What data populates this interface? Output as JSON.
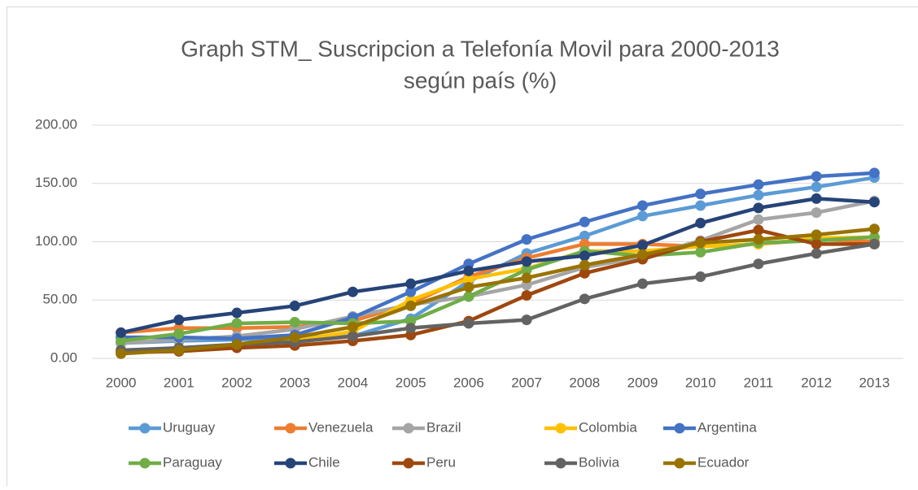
{
  "chart_data": {
    "type": "line",
    "title": [
      "Graph STM_ Suscripcion a Telefonía Movil para 2000-2013",
      "según país (%)"
    ],
    "categories": [
      "2000",
      "2001",
      "2002",
      "2003",
      "2004",
      "2005",
      "2006",
      "2007",
      "2008",
      "2009",
      "2010",
      "2011",
      "2012",
      "2013"
    ],
    "ylim": [
      0,
      200
    ],
    "yticks": [
      {
        "value": 0,
        "label": "0.00"
      },
      {
        "value": 50,
        "label": "50.00"
      },
      {
        "value": 100,
        "label": "100.00"
      },
      {
        "value": 150,
        "label": "150.00"
      },
      {
        "value": 200,
        "label": "200.00"
      }
    ],
    "grid": true,
    "legend": "bottom",
    "series": [
      {
        "name": "Uruguay",
        "color": "#5b9bd5",
        "values": [
          13,
          15,
          16,
          18,
          19,
          34,
          66,
          90,
          105,
          122,
          131,
          140,
          147,
          155
        ]
      },
      {
        "name": "Venezuela",
        "color": "#ed7d31",
        "values": [
          22,
          26,
          26,
          27,
          32,
          47,
          70,
          86,
          98,
          98,
          96,
          98,
          102,
          100
        ]
      },
      {
        "name": "Brazil",
        "color": "#a5a5a5",
        "values": [
          13,
          16,
          19,
          25,
          36,
          46,
          53,
          63,
          78,
          87,
          101,
          119,
          125,
          135
        ]
      },
      {
        "name": "Colombia",
        "color": "#ffc000",
        "values": [
          5,
          8,
          11,
          15,
          23,
          50,
          68,
          77,
          92,
          92,
          96,
          98,
          103,
          104
        ]
      },
      {
        "name": "Argentina",
        "color": "#4472c4",
        "values": [
          18,
          18,
          17,
          20,
          35,
          57,
          81,
          102,
          117,
          131,
          141,
          149,
          156,
          159
        ]
      },
      {
        "name": "Paraguay",
        "color": "#70ad47",
        "values": [
          15,
          21,
          30,
          31,
          30,
          32,
          53,
          76,
          92,
          88,
          91,
          99,
          101,
          104
        ]
      },
      {
        "name": "Chile",
        "color": "#264478",
        "values": [
          22,
          33,
          39,
          45,
          57,
          64,
          75,
          83,
          88,
          97,
          116,
          129,
          137,
          134
        ]
      },
      {
        "name": "Peru",
        "color": "#9e480e",
        "values": [
          5,
          6,
          9,
          11,
          15,
          20,
          32,
          54,
          73,
          85,
          100,
          110,
          98,
          98
        ]
      },
      {
        "name": "Bolivia",
        "color": "#636363",
        "values": [
          7,
          9,
          12,
          14,
          19,
          26,
          30,
          33,
          51,
          64,
          70,
          81,
          90,
          98
        ]
      },
      {
        "name": "Ecuador",
        "color": "#997300",
        "values": [
          4,
          7,
          12,
          18,
          27,
          45,
          61,
          69,
          80,
          89,
          99,
          102,
          106,
          111
        ]
      }
    ]
  }
}
